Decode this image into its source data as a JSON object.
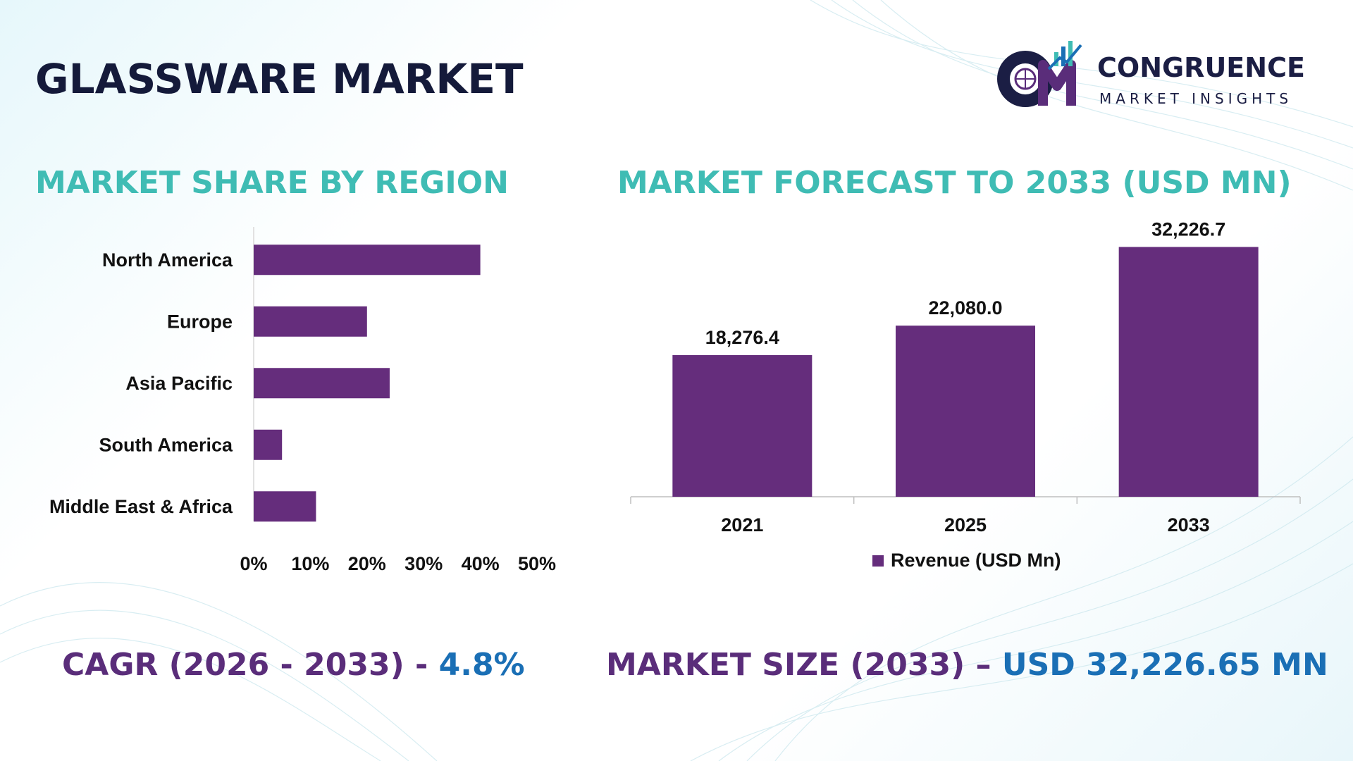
{
  "title": "GLASSWARE MARKET",
  "logo": {
    "name": "CONGRUENCE",
    "subtitle": "MARKET INSIGHTS"
  },
  "colors": {
    "bar": "#652d7c",
    "section_title": "#3fbcb4",
    "title": "#141a3a",
    "footer_label": "#5a2d7a",
    "footer_value": "#1a6fb5"
  },
  "left_section_title": "MARKET SHARE BY REGION",
  "right_section_title": "MARKET FORECAST TO 2033 (USD MN)",
  "chart_data": [
    {
      "type": "bar",
      "orientation": "horizontal",
      "categories": [
        "North America",
        "Europe",
        "Asia Pacific",
        "South America",
        "Middle East & Africa"
      ],
      "values": [
        40,
        20,
        24,
        5,
        11
      ],
      "xlim": [
        0,
        50
      ],
      "xticks": [
        "0%",
        "10%",
        "20%",
        "30%",
        "40%",
        "50%"
      ],
      "grid": false
    },
    {
      "type": "bar",
      "categories": [
        "2021",
        "2025",
        "2033"
      ],
      "series": [
        {
          "name": "Revenue (USD Mn)",
          "values": [
            18276.4,
            22080.0,
            32226.7
          ]
        }
      ],
      "data_labels": [
        "18,276.4",
        "22,080.0",
        "32,226.7"
      ],
      "ylim": [
        0,
        35000
      ],
      "legend": "bottom",
      "grid": false
    }
  ],
  "footer": {
    "cagr_label": "CAGR (2026 - 2033) - ",
    "cagr_value": "4.8%",
    "size_label": "MARKET SIZE (2033) – ",
    "size_value": "USD 32,226.65 MN"
  }
}
